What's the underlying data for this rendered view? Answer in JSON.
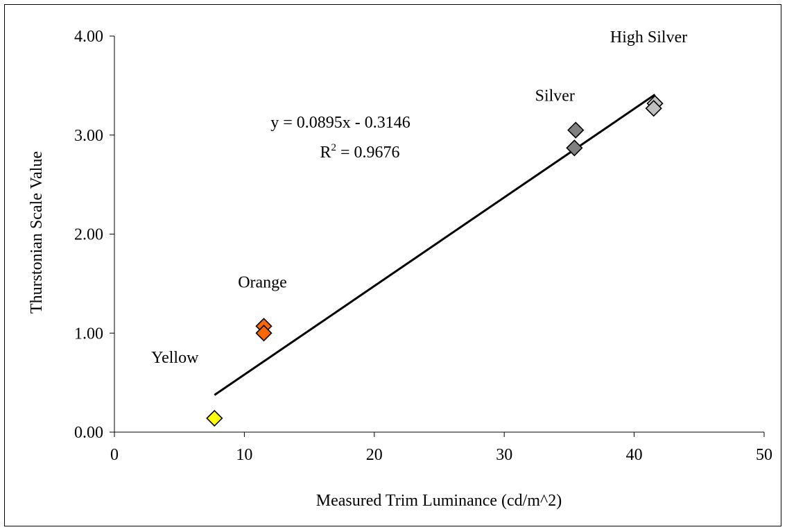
{
  "chart_data": {
    "type": "scatter",
    "xlabel": "Measured Trim Luminance (cd/m^2)",
    "ylabel": "Thurstonian Scale Value",
    "xlim": [
      0,
      50
    ],
    "ylim": [
      0,
      4
    ],
    "x_ticks": [
      0,
      10,
      20,
      30,
      40,
      50
    ],
    "y_ticks": [
      0,
      1,
      2,
      3,
      4
    ],
    "x_tick_labels": [
      "0",
      "10",
      "20",
      "30",
      "40",
      "50"
    ],
    "y_tick_labels": [
      "0.00",
      "1.00",
      "2.00",
      "3.00",
      "4.00"
    ],
    "grid": false,
    "legend": "none",
    "marker": "diamond",
    "series": [
      {
        "label": "Yellow",
        "color": "#ffff00",
        "points": [
          [
            7.7,
            0.14
          ]
        ]
      },
      {
        "label": "Orange",
        "color": "#ff6600",
        "points": [
          [
            11.5,
            1.07
          ],
          [
            11.5,
            1.0
          ]
        ]
      },
      {
        "label": "Silver",
        "color": "#808080",
        "points": [
          [
            35.5,
            3.05
          ],
          [
            35.4,
            2.87
          ]
        ]
      },
      {
        "label": "High Silver",
        "color": "#c0c0c0",
        "points": [
          [
            41.6,
            3.32
          ],
          [
            41.5,
            3.27
          ]
        ]
      }
    ],
    "trendline": {
      "slope": 0.0895,
      "intercept": -0.3146,
      "x_range": [
        7.7,
        41.6
      ],
      "equation": "y = 0.0895x - 0.3146",
      "r2_label": "R",
      "r2_exponent": "2",
      "r2_value": " = 0.9676"
    }
  }
}
